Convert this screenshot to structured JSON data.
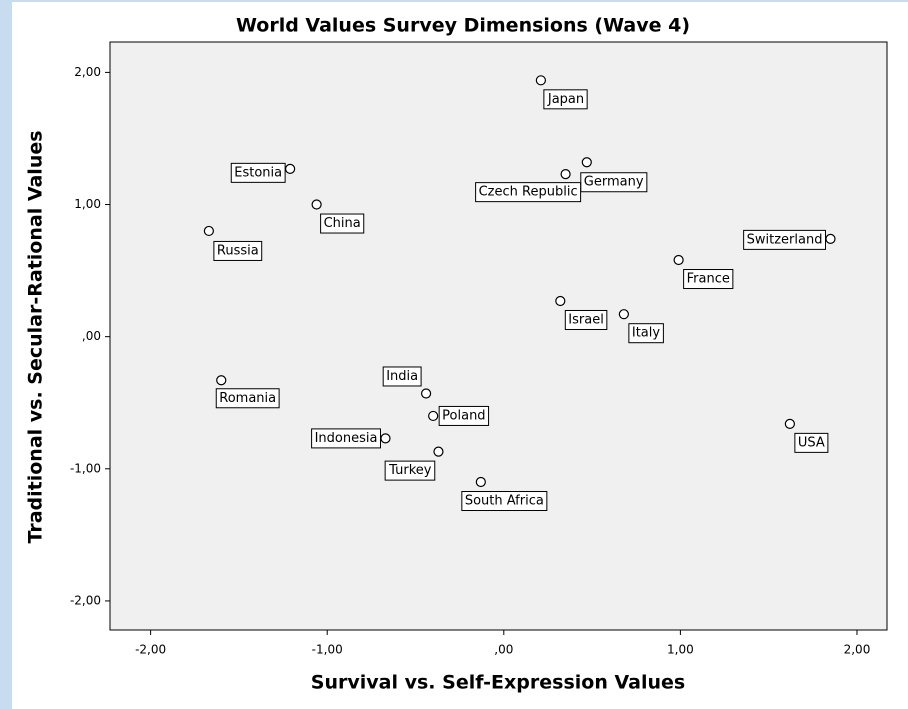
{
  "chart_data": {
    "type": "scatter",
    "title": "World Values Survey Dimensions (Wave 4)",
    "xlabel": "Survival vs. Self-Expression Values",
    "ylabel": "Traditional vs. Secular-Rational Values",
    "xlim": [
      -2.23,
      2.17
    ],
    "ylim": [
      -2.22,
      2.23
    ],
    "xticks": [
      {
        "value": -2,
        "label": "-2,00"
      },
      {
        "value": -1,
        "label": "-1,00"
      },
      {
        "value": 0,
        "label": ",00"
      },
      {
        "value": 1,
        "label": "1,00"
      },
      {
        "value": 2,
        "label": "2,00"
      }
    ],
    "yticks": [
      {
        "value": -2,
        "label": "-2,00"
      },
      {
        "value": -1,
        "label": "-1,00"
      },
      {
        "value": 0,
        "label": ",00"
      },
      {
        "value": 1,
        "label": "1,00"
      },
      {
        "value": 2,
        "label": "2,00"
      }
    ],
    "point_labels": [
      "Japan",
      "Estonia",
      "Germany",
      "Czech Republic",
      "China",
      "Russia",
      "Switzerland",
      "France",
      "Israel",
      "Italy",
      "Romania",
      "India",
      "Poland",
      "Indonesia",
      "Turkey",
      "South Africa",
      "USA"
    ],
    "x": [
      0.21,
      -1.21,
      0.47,
      0.35,
      -1.06,
      -1.67,
      1.85,
      0.99,
      0.32,
      0.68,
      -1.6,
      -0.44,
      -0.4,
      -0.67,
      -0.37,
      -0.13,
      1.62
    ],
    "y": [
      1.94,
      1.27,
      1.32,
      1.23,
      1.0,
      0.8,
      0.74,
      0.58,
      0.27,
      0.17,
      -0.33,
      -0.43,
      -0.6,
      -0.77,
      -0.87,
      -1.1,
      -0.66
    ],
    "color": "#ffffff"
  }
}
